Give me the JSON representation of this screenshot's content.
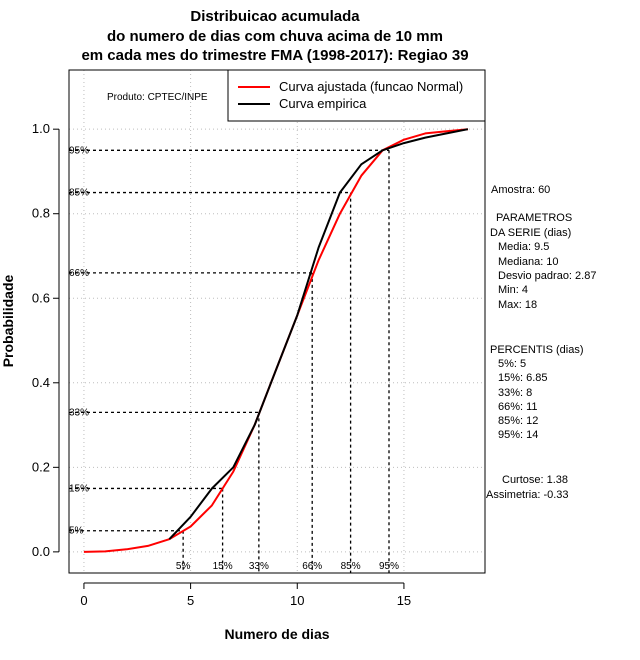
{
  "chart_data": {
    "type": "line",
    "title": [
      "Distribuicao acumulada",
      "do numero de dias com chuva acima de 10 mm",
      "em cada mes do trimestre FMA (1998-2017): Regiao 39"
    ],
    "xlabel": "Numero de dias",
    "ylabel": "Probabilidade",
    "xlim": [
      -0.7,
      18.8
    ],
    "ylim": [
      -0.05,
      1.14
    ],
    "x_ticks": [
      0,
      5,
      10,
      15
    ],
    "x_tick_labels": [
      "0",
      "5",
      "10",
      "15"
    ],
    "y_ticks": [
      0.0,
      0.2,
      0.4,
      0.6,
      0.8,
      1.0
    ],
    "y_tick_labels": [
      "0.0",
      "0.2",
      "0.4",
      "0.6",
      "0.8",
      "1.0"
    ],
    "grid": true,
    "legend_position": "top-right",
    "product_label": "Produto: CPTEC/INPE",
    "series": [
      {
        "name": "Curva ajustada (funcao Normal)",
        "color": "#ff0000",
        "x": [
          0,
          1,
          2,
          3,
          4,
          5,
          6,
          7,
          8,
          9,
          10,
          11,
          12,
          13,
          14,
          15,
          16,
          17,
          18
        ],
        "y": [
          0.0,
          0.001,
          0.006,
          0.014,
          0.03,
          0.06,
          0.11,
          0.19,
          0.3,
          0.43,
          0.56,
          0.69,
          0.8,
          0.89,
          0.95,
          0.975,
          0.99,
          0.995,
          1.0
        ]
      },
      {
        "name": "Curva empirica",
        "color": "#000000",
        "x": [
          4,
          5,
          6,
          7,
          8,
          9,
          10,
          11,
          12,
          13,
          14,
          15,
          16,
          17,
          18
        ],
        "y": [
          0.03,
          0.083,
          0.15,
          0.2,
          0.3,
          0.43,
          0.56,
          0.72,
          0.85,
          0.917,
          0.95,
          0.967,
          0.98,
          0.99,
          1.0
        ]
      }
    ],
    "percentile_lines": [
      {
        "label": "5%",
        "x": 4.65,
        "y": 0.05
      },
      {
        "label": "15%",
        "x": 6.5,
        "y": 0.15
      },
      {
        "label": "33%",
        "x": 8.2,
        "y": 0.33
      },
      {
        "label": "66%",
        "x": 10.7,
        "y": 0.66
      },
      {
        "label": "85%",
        "x": 12.5,
        "y": 0.85
      },
      {
        "label": "95%",
        "x": 14.3,
        "y": 0.95
      }
    ]
  },
  "side_panel": {
    "sample": "Amostra: 60",
    "params_header_1": "PARAMETROS",
    "params_header_2": "DA SERIE (dias)",
    "media": "Media: 9.5",
    "mediana": "Mediana: 10",
    "desvio": "Desvio padrao: 2.87",
    "min": "Min: 4",
    "max": "Max: 18",
    "percentis_header": "PERCENTIS (dias)",
    "p5": "5%: 5",
    "p15": "15%: 6.85",
    "p33": "33%: 8",
    "p66": "66%: 11",
    "p85": "85%: 12",
    "p95": "95%: 14",
    "curtose": "Curtose: 1.38",
    "assimetria": "Assimetria: -0.33"
  }
}
